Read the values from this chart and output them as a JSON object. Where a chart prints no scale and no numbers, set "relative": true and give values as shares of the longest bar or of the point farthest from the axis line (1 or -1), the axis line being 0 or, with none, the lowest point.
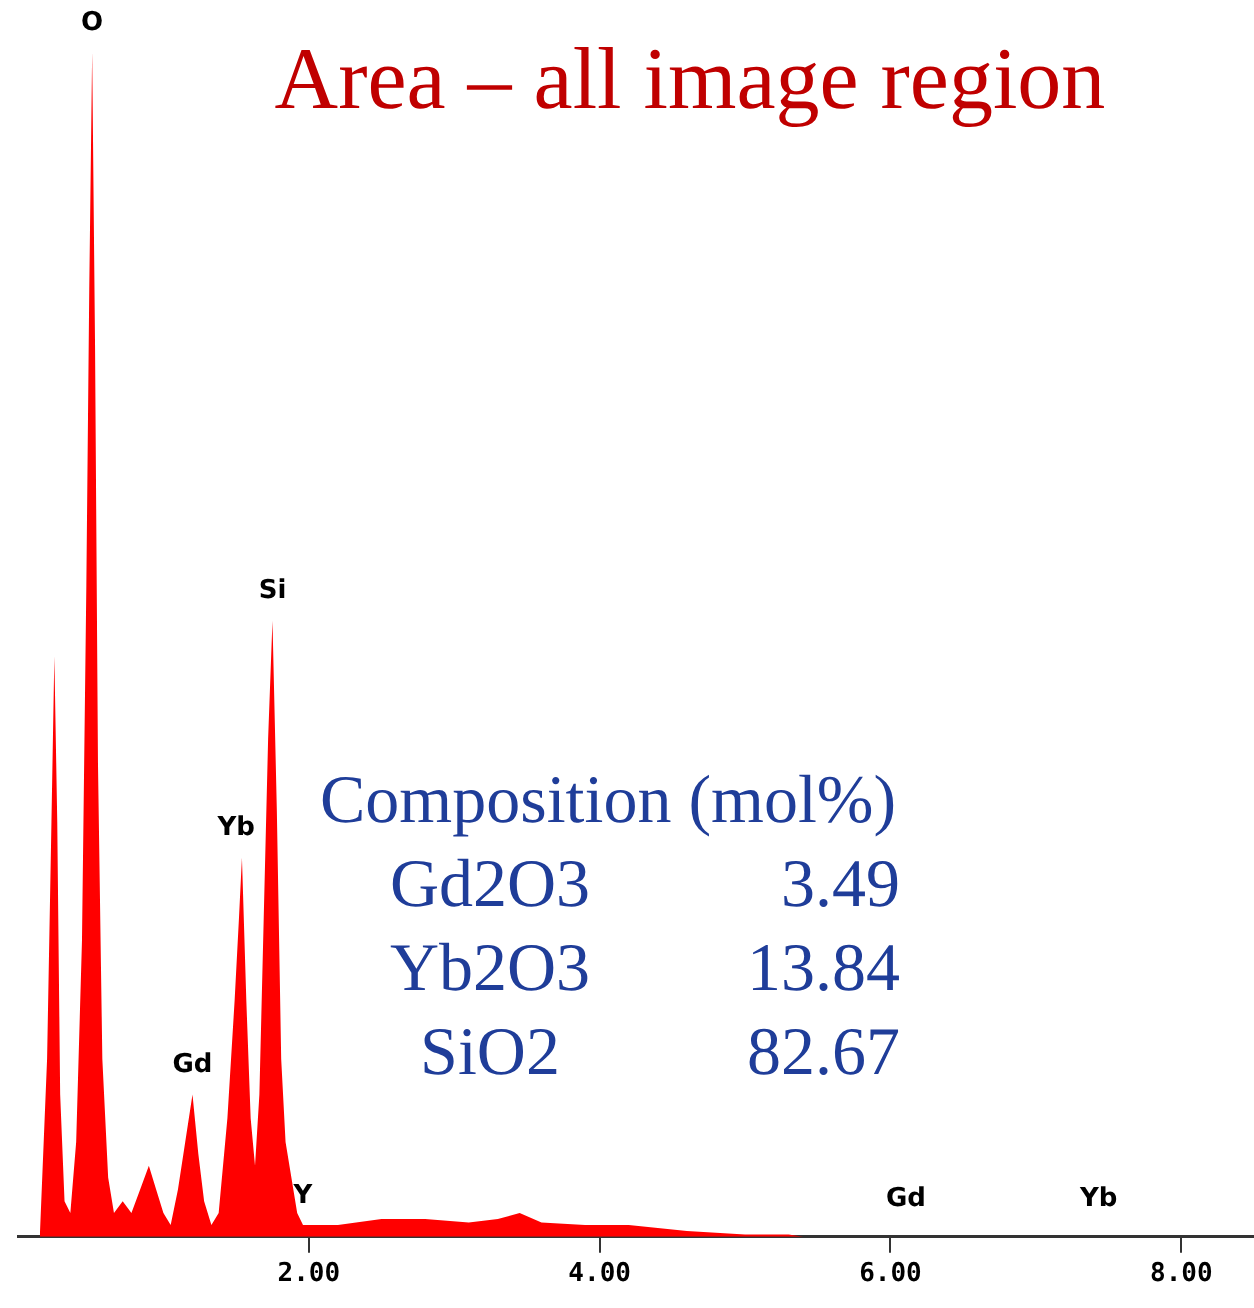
{
  "chart_data": {
    "type": "area",
    "title": "Area – all image region",
    "relative": true,
    "x": [
      0.15,
      0.2,
      0.23,
      0.25,
      0.27,
      0.29,
      0.32,
      0.36,
      0.4,
      0.44,
      0.47,
      0.49,
      0.51,
      0.53,
      0.55,
      0.58,
      0.62,
      0.66,
      0.72,
      0.78,
      0.84,
      0.9,
      0.95,
      1.0,
      1.05,
      1.1,
      1.15,
      1.2,
      1.24,
      1.28,
      1.33,
      1.38,
      1.44,
      1.49,
      1.52,
      1.54,
      1.57,
      1.6,
      1.63,
      1.66,
      1.69,
      1.72,
      1.75,
      1.78,
      1.81,
      1.84,
      1.88,
      1.92,
      1.96,
      2.2,
      2.5,
      2.8,
      3.1,
      3.3,
      3.45,
      3.6,
      3.9,
      4.2,
      4.6,
      5.0,
      5.3,
      5.4
    ],
    "series": [
      {
        "color": "#ff0000",
        "values": [
          0,
          0.15,
          0.35,
          0.49,
          0.35,
          0.12,
          0.03,
          0.02,
          0.08,
          0.25,
          0.55,
          0.8,
          1.0,
          0.75,
          0.4,
          0.15,
          0.05,
          0.02,
          0.03,
          0.02,
          0.04,
          0.06,
          0.04,
          0.02,
          0.01,
          0.04,
          0.08,
          0.12,
          0.07,
          0.03,
          0.01,
          0.02,
          0.1,
          0.2,
          0.27,
          0.32,
          0.2,
          0.1,
          0.06,
          0.12,
          0.27,
          0.42,
          0.52,
          0.36,
          0.15,
          0.08,
          0.05,
          0.02,
          0.01,
          0.01,
          0.015,
          0.015,
          0.012,
          0.015,
          0.02,
          0.012,
          0.01,
          0.01,
          0.005,
          0.002,
          0.002,
          0
        ]
      }
    ],
    "xlim": [
      0,
      8.5
    ],
    "xticks": [
      {
        "value": 2,
        "label": "2.00"
      },
      {
        "value": 4,
        "label": "4.00"
      },
      {
        "value": 6,
        "label": "6.00"
      },
      {
        "value": 8,
        "label": "8.00"
      }
    ],
    "annotations": [
      {
        "text": "O",
        "x": 0.51,
        "y": 1.0
      },
      {
        "text": "Si",
        "x": 1.75,
        "y": 0.52
      },
      {
        "text": "Yb",
        "x": 1.5,
        "y": 0.32
      },
      {
        "text": "Gd",
        "x": 1.2,
        "y": 0.12
      },
      {
        "text": "Y",
        "x": 1.96,
        "y": 0.01
      },
      "Gd",
      "Yb",
      "Composition (mol%)",
      "Gd2O3",
      "3.49",
      "Yb2O3",
      "13.84",
      "SiO2",
      "82.67"
    ]
  }
}
